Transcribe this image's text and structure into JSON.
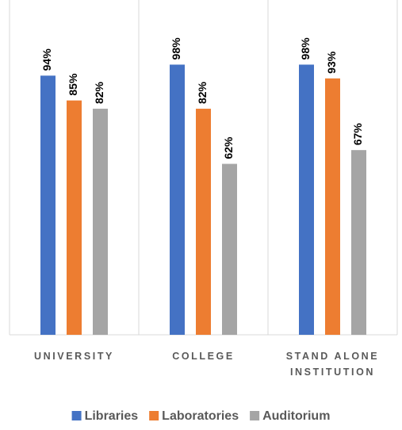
{
  "chart_data": {
    "type": "bar",
    "categories": [
      "UNIVERSITY",
      "COLLEGE",
      "STAND ALONE INSTITUTION"
    ],
    "series": [
      {
        "name": "Libraries",
        "color": "#4472c4",
        "values": [
          94,
          98,
          98
        ],
        "value_labels": [
          "94%",
          "98%",
          "98%"
        ]
      },
      {
        "name": "Laboratories",
        "color": "#ed7d31",
        "values": [
          85,
          82,
          93
        ],
        "value_labels": [
          "85%",
          "82%",
          "93%"
        ]
      },
      {
        "name": "Auditorium",
        "color": "#a5a5a5",
        "values": [
          82,
          62,
          67
        ],
        "value_labels": [
          "82%",
          "62%",
          "67%"
        ]
      }
    ],
    "ylim": [
      0,
      120
    ],
    "legend": "bottom"
  }
}
